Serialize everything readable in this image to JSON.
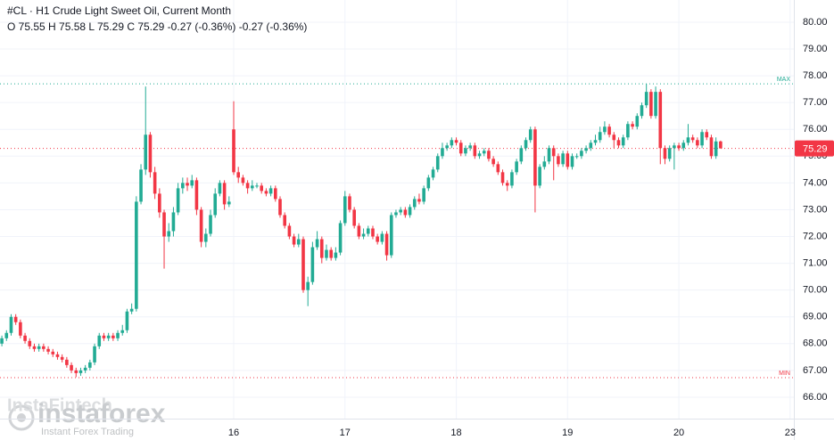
{
  "chart_data": {
    "type": "candlestick",
    "title": "#CL · H1 Crude Light Sweet Oil, Current Month",
    "subtitle": "O 75.55 H 75.58 L 75.29 C 75.29 -0.27 (-0.36%) -0.27 (-0.36%)",
    "watermark": "instaforex",
    "watermark_sub": "Instant Forex Trading",
    "watermark_brand": "InstaFintech",
    "up_color": "#22ab94",
    "down_color": "#f23645",
    "grid": true,
    "open": [
      68.0,
      68.2,
      68.4,
      69.0,
      68.8,
      68.3,
      68.1,
      67.9,
      67.8,
      67.9,
      67.8,
      67.7,
      67.6,
      67.5,
      67.4,
      67.2,
      67.0,
      66.9,
      67.0,
      67.1,
      67.3,
      67.9,
      68.3,
      68.2,
      68.3,
      68.2,
      68.4,
      68.5,
      69.2,
      69.3,
      73.3,
      74.5,
      75.8,
      74.4,
      73.6,
      72.9,
      72.0,
      72.2,
      72.9,
      73.8,
      74.0,
      73.9,
      74.1,
      73.0,
      71.8,
      72.1,
      72.8,
      73.6,
      74.0,
      73.2,
      76.0,
      74.4,
      74.2,
      74.0,
      73.8,
      73.9,
      73.9,
      73.7,
      73.6,
      73.8,
      73.4,
      72.8,
      72.4,
      72.0,
      71.7,
      71.9,
      70.0,
      70.3,
      71.6,
      71.9,
      71.2,
      71.5,
      71.2,
      71.4,
      72.5,
      73.5,
      73.0,
      72.4,
      72.0,
      72.1,
      72.3,
      72.0,
      71.8,
      72.1,
      71.3,
      72.8,
      72.9,
      73.0,
      72.8,
      73.1,
      73.4,
      73.3,
      73.8,
      74.2,
      74.5,
      75.0,
      75.3,
      75.4,
      75.6,
      75.5,
      75.1,
      75.3,
      75.4,
      75.0,
      75.1,
      75.2,
      74.9,
      74.7,
      74.4,
      74.0,
      73.9,
      74.4,
      74.8,
      75.3,
      75.6,
      76.0,
      73.9,
      74.6,
      74.8,
      75.3,
      75.0,
      74.7,
      75.1,
      74.6,
      75.0,
      75.0,
      75.2,
      75.3,
      75.5,
      75.6,
      75.9,
      76.1,
      75.8,
      75.6,
      75.4,
      75.7,
      76.2,
      76.1,
      76.5,
      76.9,
      77.4,
      76.5,
      77.4,
      75.3,
      74.9,
      75.3,
      75.4,
      75.3,
      75.5,
      75.7,
      75.6,
      75.4,
      75.9,
      75.7,
      75.0,
      75.55
    ],
    "high": [
      68.3,
      68.5,
      69.1,
      69.1,
      68.9,
      68.4,
      68.2,
      68.0,
      68.0,
      68.0,
      67.9,
      67.8,
      67.7,
      67.6,
      67.5,
      67.3,
      67.1,
      67.1,
      67.2,
      67.4,
      68.0,
      68.4,
      68.4,
      68.4,
      68.4,
      68.5,
      68.7,
      69.3,
      69.5,
      73.5,
      74.7,
      77.6,
      75.9,
      74.6,
      73.8,
      73.0,
      72.5,
      73.1,
      74.0,
      74.2,
      74.2,
      74.3,
      74.2,
      73.1,
      72.3,
      73.0,
      73.8,
      74.1,
      74.1,
      73.5,
      77.05,
      74.6,
      74.3,
      74.1,
      74.1,
      74.0,
      74.0,
      73.8,
      73.9,
      73.9,
      73.5,
      72.9,
      72.5,
      72.1,
      72.1,
      72.0,
      70.5,
      71.8,
      72.2,
      72.0,
      71.7,
      71.6,
      71.6,
      72.6,
      73.7,
      73.6,
      73.1,
      72.5,
      72.3,
      72.4,
      72.4,
      72.1,
      72.2,
      72.2,
      72.9,
      73.0,
      73.1,
      73.1,
      73.2,
      73.5,
      73.6,
      73.9,
      74.3,
      74.6,
      75.1,
      75.5,
      75.5,
      75.7,
      75.7,
      75.6,
      75.4,
      75.5,
      75.5,
      75.2,
      75.3,
      75.3,
      75.0,
      74.8,
      74.5,
      74.1,
      74.5,
      74.9,
      75.4,
      75.7,
      76.1,
      76.1,
      74.7,
      75.0,
      75.4,
      75.4,
      75.1,
      75.2,
      75.2,
      75.1,
      75.1,
      75.3,
      75.4,
      75.6,
      75.8,
      76.1,
      76.3,
      76.2,
      75.9,
      75.7,
      75.8,
      76.3,
      76.3,
      76.6,
      77.0,
      77.7,
      77.5,
      77.6,
      77.5,
      75.4,
      75.4,
      75.5,
      75.5,
      75.6,
      76.2,
      75.8,
      75.7,
      76.0,
      76.0,
      75.8,
      75.7,
      75.58
    ],
    "low": [
      67.9,
      68.1,
      68.3,
      68.7,
      68.2,
      68.0,
      67.8,
      67.7,
      67.7,
      67.7,
      67.6,
      67.5,
      67.4,
      67.3,
      67.1,
      66.9,
      66.75,
      66.8,
      66.9,
      67.0,
      67.2,
      67.8,
      68.1,
      68.1,
      68.1,
      68.1,
      68.3,
      68.4,
      69.1,
      69.2,
      73.2,
      74.3,
      74.2,
      73.4,
      72.7,
      70.8,
      71.8,
      72.0,
      72.8,
      73.6,
      73.7,
      73.8,
      72.8,
      71.6,
      71.6,
      72.0,
      72.7,
      73.5,
      73.0,
      73.1,
      74.3,
      74.0,
      73.9,
      73.6,
      73.7,
      73.8,
      73.6,
      73.5,
      73.5,
      73.3,
      72.7,
      72.3,
      71.9,
      71.6,
      71.6,
      69.9,
      69.4,
      70.2,
      71.5,
      71.0,
      71.1,
      71.1,
      71.1,
      71.3,
      72.4,
      72.9,
      72.3,
      71.9,
      71.9,
      72.0,
      71.9,
      71.7,
      71.7,
      71.1,
      71.2,
      72.7,
      72.8,
      72.7,
      72.7,
      73.0,
      73.2,
      73.2,
      73.7,
      74.1,
      74.4,
      74.9,
      75.2,
      75.3,
      75.4,
      75.0,
      75.0,
      75.2,
      74.9,
      74.9,
      75.0,
      74.8,
      74.6,
      74.3,
      73.9,
      73.7,
      73.8,
      74.3,
      74.7,
      75.2,
      75.5,
      72.9,
      73.8,
      74.5,
      74.7,
      74.1,
      74.6,
      74.6,
      74.5,
      74.5,
      74.9,
      74.9,
      75.1,
      75.2,
      75.4,
      75.5,
      75.8,
      75.7,
      75.3,
      75.3,
      75.3,
      75.6,
      76.0,
      76.0,
      76.4,
      76.8,
      76.4,
      76.4,
      74.7,
      74.7,
      74.8,
      74.5,
      75.2,
      75.2,
      75.4,
      75.5,
      75.3,
      75.3,
      75.6,
      74.9,
      74.9,
      75.29
    ],
    "close": [
      68.2,
      68.4,
      69.0,
      68.8,
      68.3,
      68.1,
      67.9,
      67.8,
      67.9,
      67.8,
      67.7,
      67.6,
      67.5,
      67.4,
      67.2,
      67.0,
      66.9,
      67.0,
      67.1,
      67.3,
      67.9,
      68.3,
      68.2,
      68.3,
      68.2,
      68.4,
      68.5,
      69.2,
      69.3,
      73.3,
      74.5,
      75.8,
      74.4,
      73.6,
      72.9,
      72.0,
      72.2,
      72.9,
      73.8,
      74.0,
      73.9,
      74.1,
      73.0,
      71.8,
      72.1,
      72.8,
      73.6,
      74.0,
      73.2,
      73.3,
      74.4,
      74.2,
      74.0,
      73.8,
      73.9,
      73.9,
      73.7,
      73.6,
      73.8,
      73.4,
      72.8,
      72.4,
      72.0,
      71.7,
      71.9,
      70.0,
      70.3,
      71.6,
      71.9,
      71.2,
      71.5,
      71.2,
      71.4,
      72.5,
      73.5,
      73.0,
      72.4,
      72.0,
      72.1,
      72.3,
      72.0,
      71.8,
      72.1,
      71.3,
      72.8,
      72.9,
      73.0,
      72.8,
      73.1,
      73.4,
      73.3,
      73.8,
      74.2,
      74.5,
      75.0,
      75.3,
      75.4,
      75.6,
      75.5,
      75.1,
      75.3,
      75.4,
      75.0,
      75.1,
      75.2,
      74.9,
      74.7,
      74.4,
      74.0,
      73.9,
      74.4,
      74.8,
      75.3,
      75.6,
      76.0,
      73.9,
      74.6,
      74.8,
      75.3,
      75.0,
      74.7,
      75.1,
      74.6,
      75.0,
      75.0,
      75.2,
      75.3,
      75.5,
      75.6,
      75.9,
      76.1,
      75.8,
      75.6,
      75.4,
      75.7,
      76.2,
      76.1,
      76.5,
      76.9,
      77.4,
      76.5,
      77.4,
      75.3,
      74.9,
      75.3,
      75.4,
      75.3,
      75.5,
      75.7,
      75.6,
      75.4,
      75.9,
      75.7,
      75.0,
      75.55,
      75.29
    ],
    "last_price": {
      "value": 75.29,
      "label": "75.29"
    },
    "max_level": {
      "value": 77.7,
      "label": "MAX"
    },
    "min_level": {
      "value": 66.73,
      "label": "MIN"
    },
    "xlim": [
      -0.4,
      170.8
    ],
    "xticks": [
      {
        "value": 50,
        "label": "16"
      },
      {
        "value": 74,
        "label": "17"
      },
      {
        "value": 98,
        "label": "18"
      },
      {
        "value": 122,
        "label": "19"
      },
      {
        "value": 146,
        "label": "20"
      },
      {
        "value": 170,
        "label": "23"
      }
    ],
    "ylim": [
      65.2,
      80.83
    ],
    "yticks": [
      {
        "value": 66,
        "label": "66.00"
      },
      {
        "value": 67,
        "label": "67.00"
      },
      {
        "value": 68,
        "label": "68.00"
      },
      {
        "value": 69,
        "label": "69.00"
      },
      {
        "value": 70,
        "label": "70.00"
      },
      {
        "value": 71,
        "label": "71.00"
      },
      {
        "value": 72,
        "label": "72.00"
      },
      {
        "value": 73,
        "label": "73.00"
      },
      {
        "value": 74,
        "label": "74.00"
      },
      {
        "value": 75,
        "label": "75.00"
      },
      {
        "value": 76,
        "label": "76.00"
      },
      {
        "value": 77,
        "label": "77.00"
      },
      {
        "value": 78,
        "label": "78.00"
      },
      {
        "value": 79,
        "label": "79.00"
      },
      {
        "value": 80,
        "label": "80.00"
      }
    ]
  }
}
